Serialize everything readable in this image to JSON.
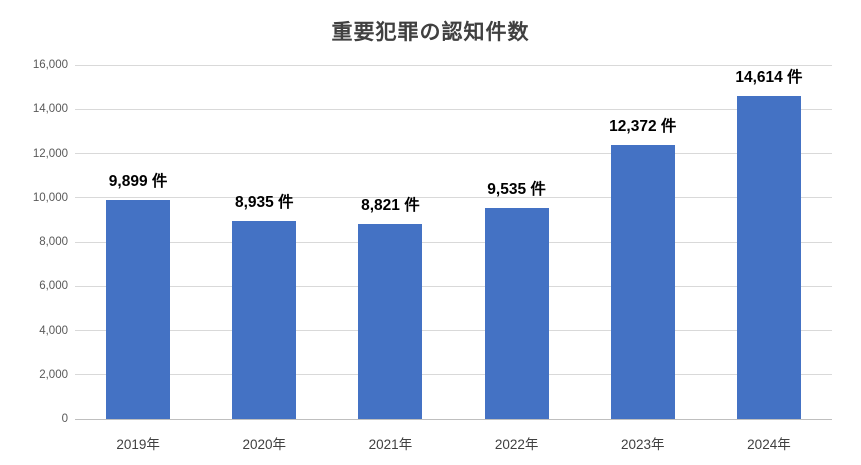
{
  "colors": {
    "bar": "#4472c4",
    "gridline": "#d9d9d9",
    "axis_line": "#bfbfbf",
    "title_text": "#404040",
    "axis_text": "#595959",
    "data_label_text": "#000000",
    "background": "#ffffff"
  },
  "chart_data": {
    "type": "bar",
    "title": "重要犯罪の認知件数",
    "categories": [
      "2019年",
      "2020年",
      "2021年",
      "2022年",
      "2023年",
      "2024年"
    ],
    "values": [
      9899,
      8935,
      8821,
      9535,
      12372,
      14614
    ],
    "data_labels": [
      "9,899 件",
      "8,935 件",
      "8,821 件",
      "9,535 件",
      "12,372 件",
      "14,614 件"
    ],
    "unit": "件",
    "xlabel": "",
    "ylabel": "",
    "ylim": [
      0,
      16000
    ],
    "ytick_step": 2000,
    "ytick_labels": [
      "0",
      "2,000",
      "4,000",
      "6,000",
      "8,000",
      "10,000",
      "12,000",
      "14,000",
      "16,000"
    ],
    "grid": "horizontal",
    "legend": "none"
  }
}
